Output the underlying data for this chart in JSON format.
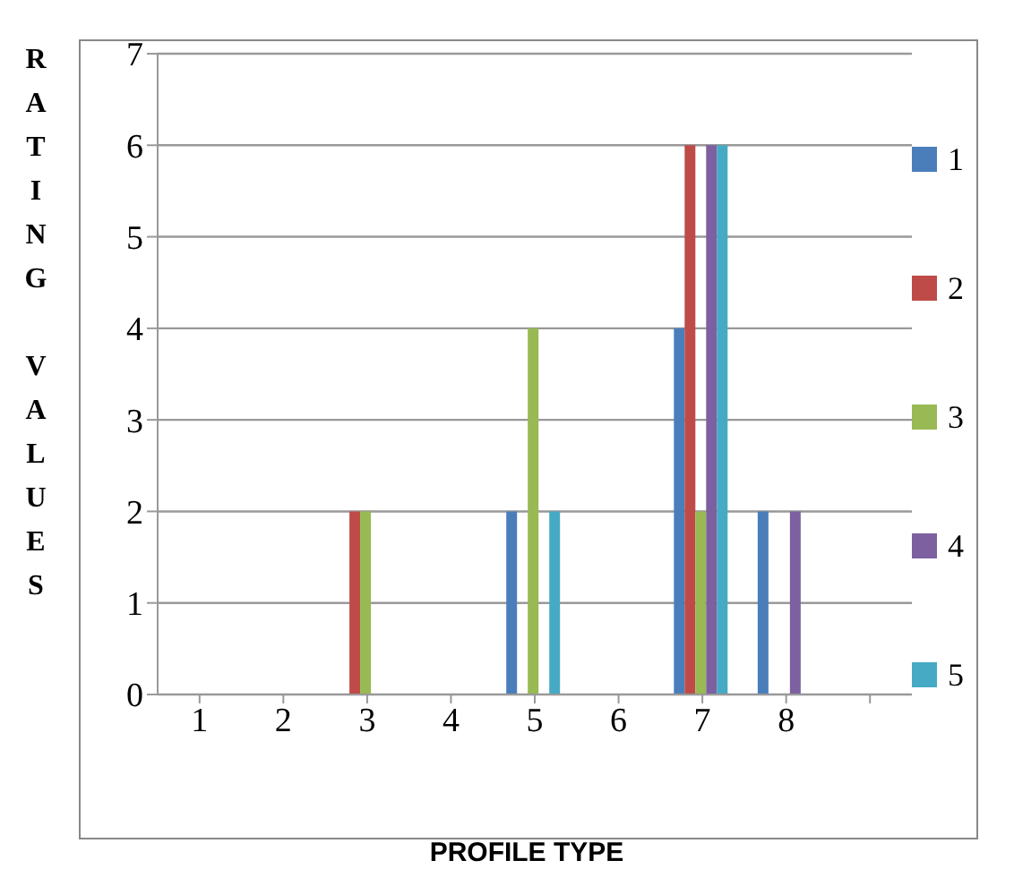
{
  "chart_data": {
    "type": "bar",
    "xlabel": "PROFILE TYPE",
    "ylabel": "RATING VALUES",
    "categories": [
      "1",
      "2",
      "3",
      "4",
      "5",
      "6",
      "7",
      "8",
      null
    ],
    "series": [
      {
        "name": "1",
        "color": "#4a7ebb",
        "values": [
          0,
          0,
          0,
          0,
          2,
          0,
          4,
          2,
          0
        ]
      },
      {
        "name": "2",
        "color": "#be4b48",
        "values": [
          0,
          0,
          2,
          0,
          0,
          0,
          6,
          0,
          0
        ]
      },
      {
        "name": "3",
        "color": "#98b954",
        "values": [
          0,
          0,
          2,
          0,
          4,
          0,
          2,
          0,
          0
        ]
      },
      {
        "name": "4",
        "color": "#7d60a0",
        "values": [
          0,
          0,
          0,
          0,
          0,
          0,
          6,
          2,
          0
        ]
      },
      {
        "name": "5",
        "color": "#46aac5",
        "values": [
          0,
          0,
          0,
          0,
          2,
          0,
          6,
          0,
          0
        ]
      }
    ],
    "ylim": [
      0,
      7
    ],
    "yticks": [
      0,
      1,
      2,
      3,
      4,
      5,
      6,
      7
    ],
    "grid": "y",
    "legend": "right"
  }
}
